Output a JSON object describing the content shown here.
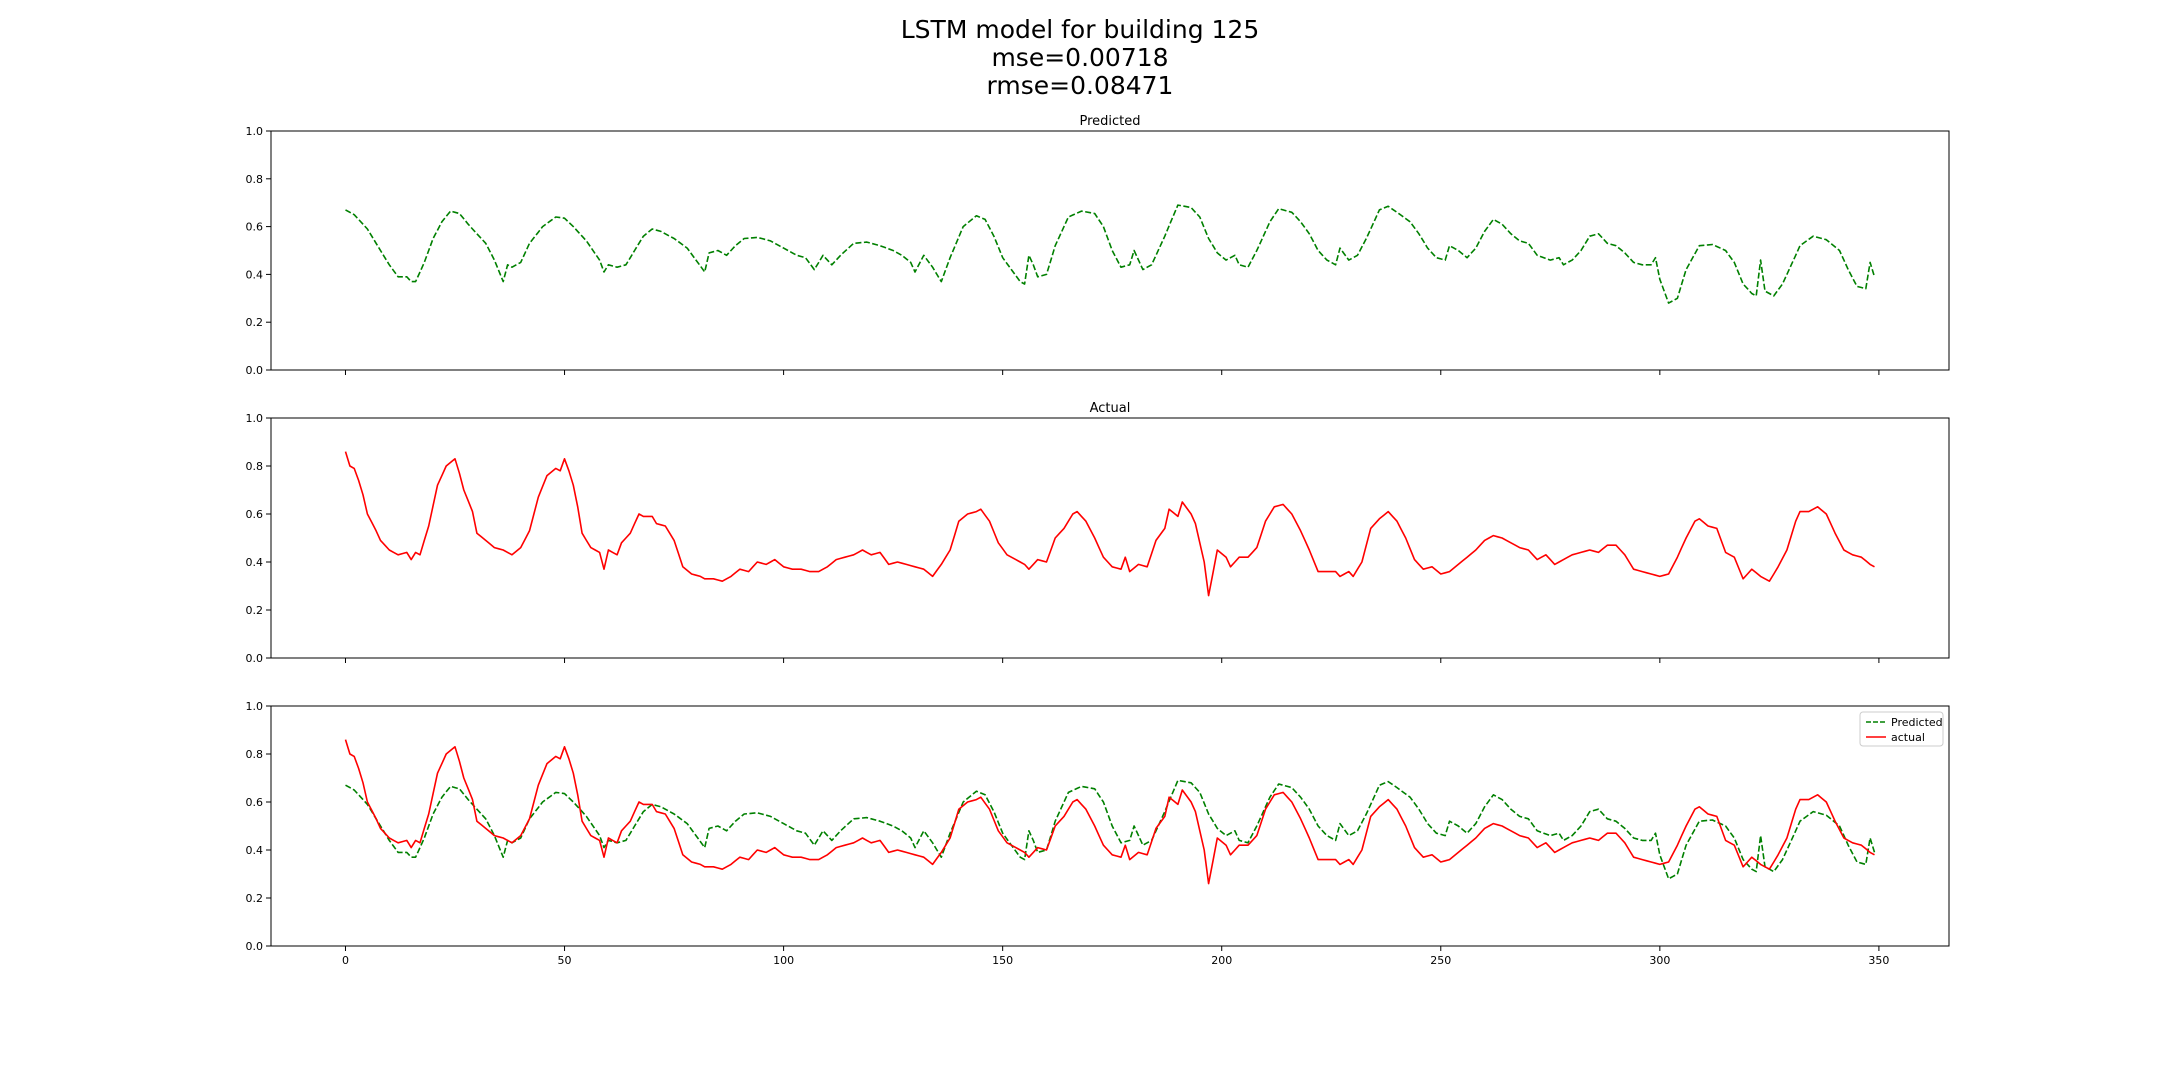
{
  "figure": {
    "title_line1": "LSTM model for building 125",
    "title_line2": "mse=0.00718",
    "title_line3": "rmse=0.08471"
  },
  "colors": {
    "predicted": "#008000",
    "actual": "#ff0000"
  },
  "chart_data": [
    {
      "type": "line",
      "title": "Predicted",
      "xlim": [
        -17,
        366
      ],
      "ylim": [
        0.0,
        1.0
      ],
      "xticks": [
        0,
        50,
        100,
        150,
        200,
        250,
        300,
        350
      ],
      "yticks": [
        0.0,
        0.2,
        0.4,
        0.6,
        0.8,
        1.0
      ],
      "grid": false,
      "series": [
        {
          "key": "predicted",
          "style": "dashed"
        }
      ]
    },
    {
      "type": "line",
      "title": "Actual",
      "xlim": [
        -17,
        366
      ],
      "ylim": [
        0.0,
        1.0
      ],
      "xticks": [
        0,
        50,
        100,
        150,
        200,
        250,
        300,
        350
      ],
      "yticks": [
        0.0,
        0.2,
        0.4,
        0.6,
        0.8,
        1.0
      ],
      "grid": false,
      "series": [
        {
          "key": "actual",
          "style": "solid"
        }
      ]
    },
    {
      "type": "line",
      "title": "",
      "xlim": [
        -17,
        366
      ],
      "ylim": [
        0.0,
        1.0
      ],
      "xticks": [
        0,
        50,
        100,
        150,
        200,
        250,
        300,
        350
      ],
      "yticks": [
        0.0,
        0.2,
        0.4,
        0.6,
        0.8,
        1.0
      ],
      "grid": false,
      "legend": "top-right",
      "series": [
        {
          "key": "predicted",
          "name": "Predicted",
          "style": "dashed"
        },
        {
          "key": "actual",
          "name": "actual",
          "style": "solid"
        }
      ]
    }
  ],
  "series_values": {
    "predicted_keypoints": [
      [
        0,
        0.67
      ],
      [
        2,
        0.65
      ],
      [
        5,
        0.59
      ],
      [
        8,
        0.5
      ],
      [
        10,
        0.44
      ],
      [
        12,
        0.39
      ],
      [
        14,
        0.39
      ],
      [
        15,
        0.37
      ],
      [
        16,
        0.37
      ],
      [
        18,
        0.45
      ],
      [
        20,
        0.55
      ],
      [
        22,
        0.62
      ],
      [
        24,
        0.665
      ],
      [
        26,
        0.655
      ],
      [
        28,
        0.61
      ],
      [
        30,
        0.57
      ],
      [
        32,
        0.53
      ],
      [
        34,
        0.46
      ],
      [
        36,
        0.37
      ],
      [
        37,
        0.44
      ],
      [
        38,
        0.43
      ],
      [
        40,
        0.45
      ],
      [
        42,
        0.53
      ],
      [
        45,
        0.6
      ],
      [
        48,
        0.64
      ],
      [
        50,
        0.635
      ],
      [
        52,
        0.6
      ],
      [
        55,
        0.54
      ],
      [
        58,
        0.46
      ],
      [
        59,
        0.41
      ],
      [
        60,
        0.44
      ],
      [
        62,
        0.43
      ],
      [
        64,
        0.44
      ],
      [
        66,
        0.5
      ],
      [
        68,
        0.56
      ],
      [
        70,
        0.59
      ],
      [
        72,
        0.58
      ],
      [
        75,
        0.55
      ],
      [
        78,
        0.51
      ],
      [
        80,
        0.46
      ],
      [
        82,
        0.41
      ],
      [
        83,
        0.49
      ],
      [
        85,
        0.5
      ],
      [
        87,
        0.48
      ],
      [
        89,
        0.52
      ],
      [
        91,
        0.55
      ],
      [
        94,
        0.555
      ],
      [
        97,
        0.54
      ],
      [
        100,
        0.51
      ],
      [
        103,
        0.48
      ],
      [
        105,
        0.47
      ],
      [
        107,
        0.42
      ],
      [
        109,
        0.48
      ],
      [
        111,
        0.44
      ],
      [
        113,
        0.48
      ],
      [
        116,
        0.53
      ],
      [
        119,
        0.535
      ],
      [
        122,
        0.52
      ],
      [
        125,
        0.5
      ],
      [
        127,
        0.48
      ],
      [
        129,
        0.45
      ],
      [
        130,
        0.41
      ],
      [
        132,
        0.48
      ],
      [
        134,
        0.43
      ],
      [
        136,
        0.37
      ],
      [
        138,
        0.47
      ],
      [
        141,
        0.6
      ],
      [
        144,
        0.645
      ],
      [
        146,
        0.63
      ],
      [
        148,
        0.56
      ],
      [
        150,
        0.47
      ],
      [
        152,
        0.42
      ],
      [
        154,
        0.37
      ],
      [
        155,
        0.36
      ],
      [
        156,
        0.48
      ],
      [
        157,
        0.44
      ],
      [
        158,
        0.39
      ],
      [
        160,
        0.4
      ],
      [
        162,
        0.52
      ],
      [
        165,
        0.64
      ],
      [
        168,
        0.665
      ],
      [
        171,
        0.655
      ],
      [
        173,
        0.6
      ],
      [
        175,
        0.5
      ],
      [
        177,
        0.43
      ],
      [
        179,
        0.44
      ],
      [
        180,
        0.5
      ],
      [
        182,
        0.42
      ],
      [
        184,
        0.44
      ],
      [
        187,
        0.56
      ],
      [
        190,
        0.69
      ],
      [
        193,
        0.68
      ],
      [
        195,
        0.64
      ],
      [
        197,
        0.55
      ],
      [
        199,
        0.49
      ],
      [
        201,
        0.46
      ],
      [
        203,
        0.48
      ],
      [
        204,
        0.44
      ],
      [
        206,
        0.43
      ],
      [
        208,
        0.5
      ],
      [
        211,
        0.62
      ],
      [
        213,
        0.675
      ],
      [
        216,
        0.66
      ],
      [
        218,
        0.62
      ],
      [
        220,
        0.57
      ],
      [
        222,
        0.5
      ],
      [
        224,
        0.46
      ],
      [
        226,
        0.44
      ],
      [
        227,
        0.51
      ],
      [
        229,
        0.46
      ],
      [
        231,
        0.48
      ],
      [
        233,
        0.55
      ],
      [
        236,
        0.67
      ],
      [
        238,
        0.685
      ],
      [
        240,
        0.66
      ],
      [
        243,
        0.62
      ],
      [
        245,
        0.57
      ],
      [
        247,
        0.51
      ],
      [
        249,
        0.47
      ],
      [
        251,
        0.46
      ],
      [
        252,
        0.52
      ],
      [
        254,
        0.5
      ],
      [
        256,
        0.47
      ],
      [
        258,
        0.51
      ],
      [
        260,
        0.58
      ],
      [
        262,
        0.63
      ],
      [
        264,
        0.61
      ],
      [
        266,
        0.57
      ],
      [
        268,
        0.54
      ],
      [
        270,
        0.53
      ],
      [
        272,
        0.48
      ],
      [
        275,
        0.46
      ],
      [
        277,
        0.47
      ],
      [
        278,
        0.44
      ],
      [
        280,
        0.46
      ],
      [
        282,
        0.5
      ],
      [
        284,
        0.56
      ],
      [
        286,
        0.57
      ],
      [
        288,
        0.53
      ],
      [
        290,
        0.52
      ],
      [
        292,
        0.49
      ],
      [
        294,
        0.45
      ],
      [
        296,
        0.44
      ],
      [
        298,
        0.44
      ],
      [
        299,
        0.47
      ],
      [
        300,
        0.38
      ],
      [
        302,
        0.28
      ],
      [
        304,
        0.3
      ],
      [
        306,
        0.42
      ],
      [
        309,
        0.52
      ],
      [
        312,
        0.525
      ],
      [
        315,
        0.5
      ],
      [
        317,
        0.45
      ],
      [
        319,
        0.36
      ],
      [
        321,
        0.32
      ],
      [
        322,
        0.31
      ],
      [
        323,
        0.46
      ],
      [
        324,
        0.33
      ],
      [
        326,
        0.31
      ],
      [
        328,
        0.36
      ],
      [
        330,
        0.44
      ],
      [
        332,
        0.52
      ],
      [
        335,
        0.56
      ],
      [
        338,
        0.545
      ],
      [
        341,
        0.5
      ],
      [
        343,
        0.42
      ],
      [
        345,
        0.35
      ],
      [
        347,
        0.34
      ],
      [
        348,
        0.45
      ],
      [
        349,
        0.39
      ]
    ],
    "actual_keypoints": [
      [
        0,
        0.86
      ],
      [
        1,
        0.8
      ],
      [
        2,
        0.79
      ],
      [
        3,
        0.74
      ],
      [
        4,
        0.68
      ],
      [
        5,
        0.6
      ],
      [
        7,
        0.53
      ],
      [
        8,
        0.49
      ],
      [
        10,
        0.45
      ],
      [
        12,
        0.43
      ],
      [
        14,
        0.44
      ],
      [
        15,
        0.41
      ],
      [
        16,
        0.44
      ],
      [
        17,
        0.43
      ],
      [
        19,
        0.55
      ],
      [
        21,
        0.72
      ],
      [
        23,
        0.8
      ],
      [
        25,
        0.83
      ],
      [
        26,
        0.77
      ],
      [
        27,
        0.7
      ],
      [
        29,
        0.61
      ],
      [
        30,
        0.52
      ],
      [
        32,
        0.49
      ],
      [
        34,
        0.46
      ],
      [
        36,
        0.45
      ],
      [
        38,
        0.43
      ],
      [
        40,
        0.46
      ],
      [
        42,
        0.53
      ],
      [
        44,
        0.67
      ],
      [
        46,
        0.76
      ],
      [
        48,
        0.79
      ],
      [
        49,
        0.78
      ],
      [
        50,
        0.83
      ],
      [
        51,
        0.78
      ],
      [
        52,
        0.72
      ],
      [
        53,
        0.63
      ],
      [
        54,
        0.52
      ],
      [
        56,
        0.46
      ],
      [
        58,
        0.44
      ],
      [
        59,
        0.37
      ],
      [
        60,
        0.45
      ],
      [
        62,
        0.43
      ],
      [
        63,
        0.48
      ],
      [
        65,
        0.52
      ],
      [
        67,
        0.6
      ],
      [
        68,
        0.59
      ],
      [
        70,
        0.59
      ],
      [
        71,
        0.56
      ],
      [
        73,
        0.55
      ],
      [
        75,
        0.49
      ],
      [
        77,
        0.38
      ],
      [
        79,
        0.35
      ],
      [
        81,
        0.34
      ],
      [
        82,
        0.33
      ],
      [
        84,
        0.33
      ],
      [
        86,
        0.32
      ],
      [
        88,
        0.34
      ],
      [
        90,
        0.37
      ],
      [
        92,
        0.36
      ],
      [
        94,
        0.4
      ],
      [
        96,
        0.39
      ],
      [
        98,
        0.41
      ],
      [
        100,
        0.38
      ],
      [
        102,
        0.37
      ],
      [
        104,
        0.37
      ],
      [
        106,
        0.36
      ],
      [
        108,
        0.36
      ],
      [
        110,
        0.38
      ],
      [
        112,
        0.41
      ],
      [
        114,
        0.42
      ],
      [
        116,
        0.43
      ],
      [
        118,
        0.45
      ],
      [
        120,
        0.43
      ],
      [
        122,
        0.44
      ],
      [
        124,
        0.39
      ],
      [
        126,
        0.4
      ],
      [
        128,
        0.39
      ],
      [
        130,
        0.38
      ],
      [
        132,
        0.37
      ],
      [
        134,
        0.34
      ],
      [
        136,
        0.39
      ],
      [
        138,
        0.45
      ],
      [
        140,
        0.57
      ],
      [
        142,
        0.6
      ],
      [
        144,
        0.61
      ],
      [
        145,
        0.62
      ],
      [
        147,
        0.57
      ],
      [
        149,
        0.48
      ],
      [
        151,
        0.43
      ],
      [
        153,
        0.41
      ],
      [
        155,
        0.39
      ],
      [
        156,
        0.37
      ],
      [
        158,
        0.41
      ],
      [
        160,
        0.4
      ],
      [
        162,
        0.5
      ],
      [
        164,
        0.54
      ],
      [
        166,
        0.6
      ],
      [
        167,
        0.61
      ],
      [
        169,
        0.57
      ],
      [
        171,
        0.5
      ],
      [
        173,
        0.42
      ],
      [
        175,
        0.38
      ],
      [
        177,
        0.37
      ],
      [
        178,
        0.42
      ],
      [
        179,
        0.36
      ],
      [
        181,
        0.39
      ],
      [
        183,
        0.38
      ],
      [
        185,
        0.49
      ],
      [
        187,
        0.54
      ],
      [
        188,
        0.62
      ],
      [
        190,
        0.59
      ],
      [
        191,
        0.65
      ],
      [
        193,
        0.6
      ],
      [
        194,
        0.56
      ],
      [
        196,
        0.4
      ],
      [
        197,
        0.26
      ],
      [
        199,
        0.45
      ],
      [
        201,
        0.42
      ],
      [
        202,
        0.38
      ],
      [
        204,
        0.42
      ],
      [
        206,
        0.42
      ],
      [
        208,
        0.46
      ],
      [
        210,
        0.57
      ],
      [
        212,
        0.63
      ],
      [
        214,
        0.64
      ],
      [
        216,
        0.6
      ],
      [
        218,
        0.53
      ],
      [
        220,
        0.45
      ],
      [
        222,
        0.36
      ],
      [
        224,
        0.36
      ],
      [
        226,
        0.36
      ],
      [
        227,
        0.34
      ],
      [
        229,
        0.36
      ],
      [
        230,
        0.34
      ],
      [
        232,
        0.4
      ],
      [
        234,
        0.54
      ],
      [
        236,
        0.58
      ],
      [
        238,
        0.61
      ],
      [
        240,
        0.57
      ],
      [
        242,
        0.5
      ],
      [
        244,
        0.41
      ],
      [
        246,
        0.37
      ],
      [
        248,
        0.38
      ],
      [
        250,
        0.35
      ],
      [
        252,
        0.36
      ],
      [
        254,
        0.39
      ],
      [
        256,
        0.42
      ],
      [
        258,
        0.45
      ],
      [
        260,
        0.49
      ],
      [
        262,
        0.51
      ],
      [
        264,
        0.5
      ],
      [
        266,
        0.48
      ],
      [
        268,
        0.46
      ],
      [
        270,
        0.45
      ],
      [
        272,
        0.41
      ],
      [
        274,
        0.43
      ],
      [
        276,
        0.39
      ],
      [
        278,
        0.41
      ],
      [
        280,
        0.43
      ],
      [
        282,
        0.44
      ],
      [
        284,
        0.45
      ],
      [
        286,
        0.44
      ],
      [
        288,
        0.47
      ],
      [
        290,
        0.47
      ],
      [
        292,
        0.43
      ],
      [
        294,
        0.37
      ],
      [
        296,
        0.36
      ],
      [
        298,
        0.35
      ],
      [
        300,
        0.34
      ],
      [
        302,
        0.35
      ],
      [
        304,
        0.42
      ],
      [
        306,
        0.5
      ],
      [
        308,
        0.57
      ],
      [
        309,
        0.58
      ],
      [
        311,
        0.55
      ],
      [
        313,
        0.54
      ],
      [
        315,
        0.44
      ],
      [
        317,
        0.42
      ],
      [
        319,
        0.33
      ],
      [
        321,
        0.37
      ],
      [
        323,
        0.34
      ],
      [
        325,
        0.32
      ],
      [
        327,
        0.38
      ],
      [
        329,
        0.45
      ],
      [
        331,
        0.57
      ],
      [
        332,
        0.61
      ],
      [
        334,
        0.61
      ],
      [
        336,
        0.63
      ],
      [
        338,
        0.6
      ],
      [
        340,
        0.52
      ],
      [
        342,
        0.45
      ],
      [
        344,
        0.43
      ],
      [
        346,
        0.42
      ],
      [
        348,
        0.39
      ],
      [
        349,
        0.38
      ]
    ]
  }
}
